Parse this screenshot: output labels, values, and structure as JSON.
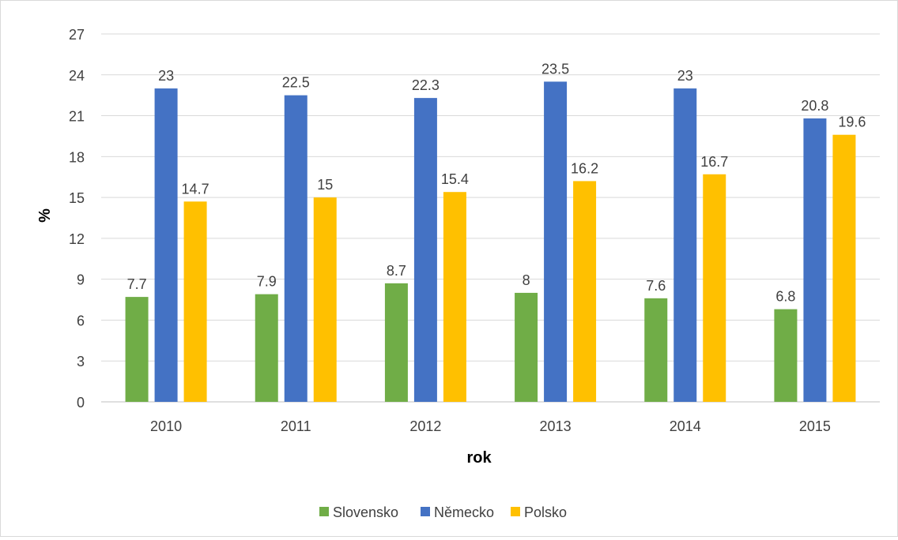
{
  "chart_data": {
    "type": "bar",
    "title": "",
    "xlabel": "rok",
    "ylabel": "%",
    "categories": [
      "2010",
      "2011",
      "2012",
      "2013",
      "2014",
      "2015"
    ],
    "series": [
      {
        "name": "Slovensko",
        "color": "#70ad47",
        "values": [
          7.7,
          7.9,
          8.7,
          8,
          7.6,
          6.8
        ]
      },
      {
        "name": "Německo",
        "color": "#4472c4",
        "values": [
          23,
          22.5,
          22.3,
          23.5,
          23,
          20.8
        ]
      },
      {
        "name": "Polsko",
        "color": "#ffc000",
        "values": [
          14.7,
          15,
          15.4,
          16.2,
          16.7,
          19.6
        ]
      }
    ],
    "ylim": [
      0,
      27
    ],
    "yticks": [
      0,
      3,
      6,
      9,
      12,
      15,
      18,
      21,
      24,
      27
    ],
    "grid": true,
    "legend": "bottom",
    "data_labels": true
  }
}
